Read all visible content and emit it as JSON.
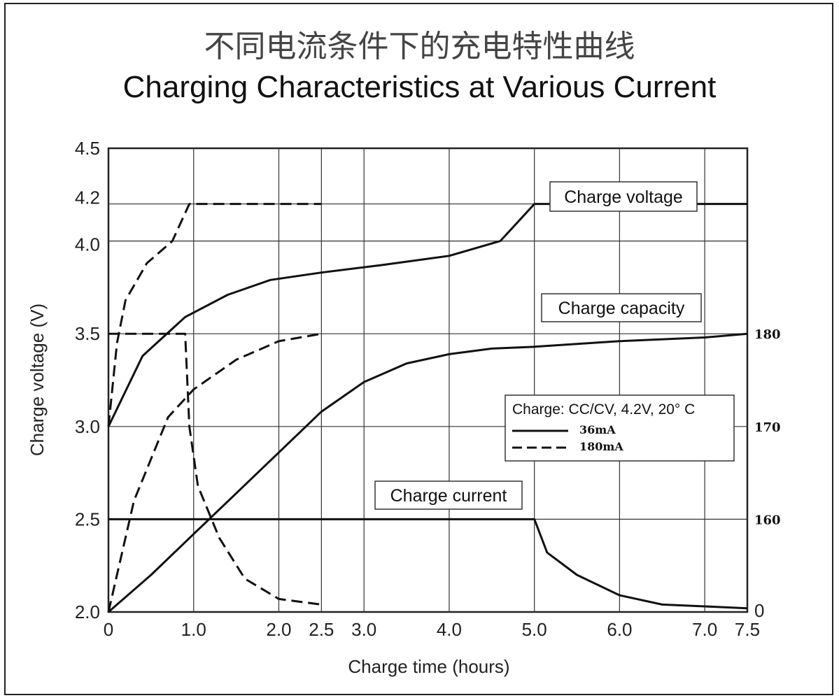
{
  "chart_data": {
    "type": "line",
    "title": "不同电流条件下的充电特性曲线",
    "subtitle": "Charging Characteristics at Various Current",
    "xlabel": "Charge time (hours)",
    "ylabel": "Charge voltage (V)",
    "xlim": [
      0,
      7.5
    ],
    "ylim": [
      2.0,
      4.5
    ],
    "x_ticks": [
      "0",
      "1.0",
      "2.0",
      "2.5",
      "3.0",
      "4.0",
      "5.0",
      "6.0",
      "7.0",
      "7.5"
    ],
    "y_ticks": [
      "2.0",
      "2.5",
      "3.0",
      "3.5",
      "4.0",
      "4.2",
      "4.5"
    ],
    "right_ticks": [
      "0",
      "160",
      "170",
      "180"
    ],
    "grid": true,
    "annotations": {
      "voltage": "Charge voltage",
      "capacity": "Charge capacity",
      "current": "Charge current"
    },
    "legend": {
      "title": "Charge: CC/CV, 4.2V, 20° C",
      "entries": [
        {
          "label": "36mA",
          "style": "solid"
        },
        {
          "label": "180mA",
          "style": "dashed"
        }
      ]
    },
    "series": [
      {
        "name": "36mA",
        "curve": "Charge voltage",
        "x": [
          0,
          0.4,
          0.9,
          1.4,
          1.9,
          2.5,
          3.2,
          4.0,
          4.6,
          5.0,
          7.5
        ],
        "y": [
          3.0,
          3.38,
          3.59,
          3.71,
          3.79,
          3.83,
          3.87,
          3.92,
          4.0,
          4.2,
          4.2
        ]
      },
      {
        "name": "36mA",
        "curve": "Charge capacity",
        "x": [
          0,
          0.5,
          1.0,
          1.5,
          2.0,
          2.5,
          3.0,
          3.5,
          4.0,
          4.5,
          5.0,
          6.0,
          7.0,
          7.5
        ],
        "y": [
          2.0,
          2.2,
          2.42,
          2.64,
          2.86,
          3.08,
          3.24,
          3.34,
          3.39,
          3.42,
          3.43,
          3.46,
          3.48,
          3.5
        ]
      },
      {
        "name": "36mA",
        "curve": "Charge current",
        "x": [
          0,
          1.0,
          2.0,
          3.0,
          4.0,
          5.0,
          5.15,
          5.5,
          6.0,
          6.5,
          7.0,
          7.5
        ],
        "y": [
          2.5,
          2.5,
          2.5,
          2.5,
          2.5,
          2.5,
          2.32,
          2.2,
          2.09,
          2.04,
          2.03,
          2.02
        ]
      },
      {
        "name": "180mA",
        "curve": "Charge voltage",
        "x": [
          0,
          0.1,
          0.2,
          0.45,
          0.75,
          0.95,
          1.5,
          2.5
        ],
        "y": [
          3.0,
          3.45,
          3.68,
          3.88,
          4.0,
          4.2,
          4.2,
          4.2
        ]
      },
      {
        "name": "180mA",
        "curve": "Charge capacity",
        "x": [
          0,
          0.3,
          0.7,
          1.0,
          1.5,
          2.0,
          2.5
        ],
        "y": [
          2.0,
          2.6,
          3.05,
          3.2,
          3.36,
          3.46,
          3.5
        ]
      },
      {
        "name": "180mA",
        "curve": "Charge current",
        "x": [
          0,
          0.5,
          0.9,
          0.95,
          1.05,
          1.3,
          1.6,
          2.0,
          2.5
        ],
        "y": [
          3.5,
          3.5,
          3.5,
          3.0,
          2.68,
          2.4,
          2.18,
          2.07,
          2.04
        ]
      }
    ]
  }
}
